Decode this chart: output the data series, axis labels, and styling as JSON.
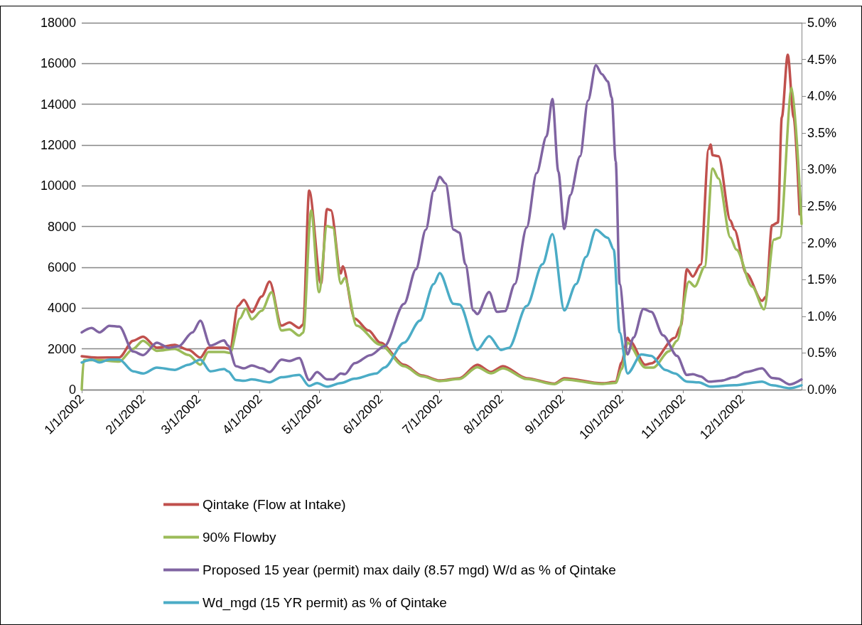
{
  "chart_data": {
    "type": "line",
    "grid": "y",
    "legend": "bottom",
    "marker": "none",
    "xlim": [
      "2002-01-01",
      "2002-12-31"
    ],
    "xticks": [
      {
        "value": "2002-01-01",
        "label": "1/1/2002"
      },
      {
        "value": "2002-02-01",
        "label": "2/1/2002"
      },
      {
        "value": "2002-03-01",
        "label": "3/1/2002"
      },
      {
        "value": "2002-04-01",
        "label": "4/1/2002"
      },
      {
        "value": "2002-05-01",
        "label": "5/1/2002"
      },
      {
        "value": "2002-06-01",
        "label": "6/1/2002"
      },
      {
        "value": "2002-07-01",
        "label": "7/1/2002"
      },
      {
        "value": "2002-08-01",
        "label": "8/1/2002"
      },
      {
        "value": "2002-09-01",
        "label": "9/1/2002"
      },
      {
        "value": "2002-10-01",
        "label": "10/1/2002"
      },
      {
        "value": "2002-11-01",
        "label": "11/1/2002"
      },
      {
        "value": "2002-12-01",
        "label": "12/1/2002"
      }
    ],
    "ylim": [
      0,
      18000
    ],
    "yticks": [
      0,
      2000,
      4000,
      6000,
      8000,
      10000,
      12000,
      14000,
      16000,
      18000
    ],
    "y2lim": [
      0,
      5
    ],
    "y2ticks": [
      {
        "value": 0,
        "label": "0.0%"
      },
      {
        "value": 0.5,
        "label": "0.5%"
      },
      {
        "value": 1,
        "label": "1.0%"
      },
      {
        "value": 1.5,
        "label": "1.5%"
      },
      {
        "value": 2,
        "label": "2.0%"
      },
      {
        "value": 2.5,
        "label": "2.5%"
      },
      {
        "value": 3,
        "label": "3.0%"
      },
      {
        "value": 3.5,
        "label": "3.5%"
      },
      {
        "value": 4,
        "label": "4.0%"
      },
      {
        "value": 4.5,
        "label": "4.5%"
      },
      {
        "value": 5,
        "label": "5.0%"
      }
    ],
    "series": [
      {
        "name": "Qintake (Flow at Intake)",
        "color": "#c0504d",
        "x": [
          "2002-01-01",
          "2002-01-09",
          "2002-01-20",
          "2002-01-27",
          "2002-02-01",
          "2002-02-08",
          "2002-02-17",
          "2002-02-24",
          "2002-03-02",
          "2002-03-06",
          "2002-03-14",
          "2002-03-17",
          "2002-03-21",
          "2002-03-24",
          "2002-03-28",
          "2002-04-02",
          "2002-04-06",
          "2002-04-12",
          "2002-04-16",
          "2002-04-21",
          "2002-04-23",
          "2002-04-26",
          "2002-05-02",
          "2002-05-05",
          "2002-05-07",
          "2002-05-12",
          "2002-05-13",
          "2002-05-19",
          "2002-05-26",
          "2002-06-01",
          "2002-06-13",
          "2002-06-22",
          "2002-07-01",
          "2002-07-11",
          "2002-07-20",
          "2002-07-27",
          "2002-08-02",
          "2002-08-14",
          "2002-08-28",
          "2002-09-02",
          "2002-09-21",
          "2002-09-28",
          "2002-10-01",
          "2002-10-04",
          "2002-10-05",
          "2002-10-13",
          "2002-10-16",
          "2002-10-28",
          "2002-10-31",
          "2002-11-03",
          "2002-11-06",
          "2002-11-10",
          "2002-11-14",
          "2002-11-15",
          "2002-11-16",
          "2002-11-19",
          "2002-11-25",
          "2002-11-27",
          "2002-12-03",
          "2002-12-11",
          "2002-12-13",
          "2002-12-16",
          "2002-12-19",
          "2002-12-21",
          "2002-12-24",
          "2002-12-27",
          "2002-12-30"
        ],
        "values": [
          1640,
          1570,
          1580,
          2400,
          2600,
          2060,
          2200,
          1950,
          1570,
          2060,
          2060,
          2000,
          4110,
          4400,
          3800,
          4570,
          5300,
          3140,
          3300,
          3030,
          3200,
          9770,
          5200,
          8860,
          8800,
          5700,
          6050,
          3490,
          2900,
          2300,
          1220,
          700,
          450,
          560,
          1220,
          870,
          1150,
          560,
          300,
          560,
          310,
          380,
          1330,
          2550,
          2400,
          1220,
          1290,
          2550,
          3140,
          5900,
          5550,
          6140,
          11800,
          12030,
          11500,
          11450,
          8300,
          7850,
          5700,
          4360,
          4560,
          8060,
          8200,
          13360,
          16430,
          13360,
          8600
        ]
      },
      {
        "name": "90% Flowby",
        "color": "#9bbb59",
        "x": [
          "2002-01-01",
          "2002-01-02",
          "2002-01-09",
          "2002-01-20",
          "2002-01-27",
          "2002-02-01",
          "2002-02-08",
          "2002-02-17",
          "2002-02-24",
          "2002-03-02",
          "2002-03-06",
          "2002-03-14",
          "2002-03-17",
          "2002-03-22",
          "2002-03-25",
          "2002-03-28",
          "2002-04-02",
          "2002-04-07",
          "2002-04-12",
          "2002-04-16",
          "2002-04-21",
          "2002-04-23",
          "2002-04-27",
          "2002-05-01",
          "2002-05-05",
          "2002-05-08",
          "2002-05-12",
          "2002-05-14",
          "2002-05-20",
          "2002-06-01",
          "2002-06-13",
          "2002-06-22",
          "2002-07-01",
          "2002-07-11",
          "2002-07-20",
          "2002-07-27",
          "2002-08-02",
          "2002-08-14",
          "2002-08-28",
          "2002-09-02",
          "2002-09-21",
          "2002-09-28",
          "2002-10-01",
          "2002-10-04",
          "2002-10-13",
          "2002-10-17",
          "2002-10-25",
          "2002-10-29",
          "2002-11-04",
          "2002-11-07",
          "2002-11-12",
          "2002-11-16",
          "2002-11-19",
          "2002-11-25",
          "2002-11-28",
          "2002-12-06",
          "2002-12-12",
          "2002-12-17",
          "2002-12-20",
          "2002-12-26",
          "2002-12-31"
        ],
        "values": [
          0,
          1450,
          1450,
          1380,
          2000,
          2400,
          1900,
          2000,
          1700,
          1220,
          1850,
          1850,
          1800,
          3490,
          3980,
          3450,
          3870,
          4780,
          2900,
          2960,
          2650,
          2800,
          8790,
          4780,
          8020,
          7950,
          5200,
          5480,
          3140,
          2200,
          1150,
          650,
          420,
          520,
          1100,
          800,
          1050,
          520,
          270,
          500,
          280,
          330,
          1000,
          2300,
          1080,
          1080,
          1880,
          2400,
          5300,
          5060,
          6030,
          10850,
          10360,
          7460,
          6870,
          5060,
          3940,
          7360,
          7460,
          14820,
          8130
        ]
      },
      {
        "name": "Proposed 15 year (permit) max daily (8.57 mgd) W/d as % of Qintake",
        "color": "#8064a2",
        "axis": "y2",
        "x": [
          "2002-01-01",
          "2002-01-06",
          "2002-01-10",
          "2002-01-15",
          "2002-01-20",
          "2002-01-27",
          "2002-02-01",
          "2002-02-08",
          "2002-02-14",
          "2002-02-19",
          "2002-02-26",
          "2002-03-02",
          "2002-03-07",
          "2002-03-14",
          "2002-03-16",
          "2002-03-20",
          "2002-03-24",
          "2002-03-28",
          "2002-04-02",
          "2002-04-06",
          "2002-04-12",
          "2002-04-16",
          "2002-04-21",
          "2002-04-26",
          "2002-04-30",
          "2002-05-05",
          "2002-05-08",
          "2002-05-12",
          "2002-05-14",
          "2002-05-19",
          "2002-05-27",
          "2002-06-03",
          "2002-06-13",
          "2002-06-19",
          "2002-06-24",
          "2002-06-28",
          "2002-07-01",
          "2002-07-04",
          "2002-07-08",
          "2002-07-11",
          "2002-07-14",
          "2002-07-18",
          "2002-07-20",
          "2002-07-26",
          "2002-07-30",
          "2002-08-03",
          "2002-08-08",
          "2002-08-14",
          "2002-08-19",
          "2002-08-24",
          "2002-08-27",
          "2002-08-30",
          "2002-09-02",
          "2002-09-05",
          "2002-09-10",
          "2002-09-14",
          "2002-09-18",
          "2002-09-21",
          "2002-09-24",
          "2002-09-26",
          "2002-09-28",
          "2002-09-30",
          "2002-10-04",
          "2002-10-07",
          "2002-10-12",
          "2002-10-16",
          "2002-10-22",
          "2002-10-29",
          "2002-11-03",
          "2002-11-06",
          "2002-11-10",
          "2002-11-14",
          "2002-11-20",
          "2002-11-27",
          "2002-12-03",
          "2002-12-11",
          "2002-12-16",
          "2002-12-19",
          "2002-12-25",
          "2002-12-31"
        ],
        "values": [
          0.78,
          0.84,
          0.78,
          0.87,
          0.86,
          0.52,
          0.47,
          0.64,
          0.57,
          0.59,
          0.78,
          0.94,
          0.6,
          0.67,
          0.6,
          0.32,
          0.29,
          0.33,
          0.29,
          0.24,
          0.41,
          0.39,
          0.43,
          0.13,
          0.24,
          0.14,
          0.14,
          0.22,
          0.21,
          0.36,
          0.47,
          0.59,
          1.17,
          1.64,
          2.18,
          2.71,
          2.9,
          2.81,
          2.18,
          2.14,
          1.71,
          1.08,
          1.03,
          1.33,
          1.06,
          1.07,
          1.44,
          2.21,
          2.95,
          3.45,
          3.96,
          2.97,
          2.19,
          2.65,
          3.18,
          3.94,
          4.42,
          4.3,
          4.2,
          3.98,
          3.11,
          1.44,
          0.48,
          0.71,
          1.1,
          1.06,
          0.74,
          0.46,
          0.2,
          0.21,
          0.18,
          0.11,
          0.12,
          0.17,
          0.24,
          0.29,
          0.16,
          0.15,
          0.07,
          0.14
        ]
      },
      {
        "name": "Wd_mgd (15 YR permit) as % of Qintake",
        "color": "#4bacc6",
        "axis": "y2",
        "x": [
          "2002-01-01",
          "2002-01-06",
          "2002-01-10",
          "2002-01-15",
          "2002-01-20",
          "2002-01-27",
          "2002-02-01",
          "2002-02-08",
          "2002-02-17",
          "2002-02-24",
          "2002-03-02",
          "2002-03-07",
          "2002-03-14",
          "2002-03-16",
          "2002-03-20",
          "2002-03-24",
          "2002-03-28",
          "2002-04-06",
          "2002-04-12",
          "2002-04-21",
          "2002-04-26",
          "2002-04-30",
          "2002-05-05",
          "2002-05-12",
          "2002-05-19",
          "2002-05-30",
          "2002-06-03",
          "2002-06-13",
          "2002-06-21",
          "2002-06-28",
          "2002-07-01",
          "2002-07-08",
          "2002-07-11",
          "2002-07-20",
          "2002-07-26",
          "2002-08-01",
          "2002-08-05",
          "2002-08-14",
          "2002-08-22",
          "2002-08-27",
          "2002-09-02",
          "2002-09-08",
          "2002-09-13",
          "2002-09-18",
          "2002-09-24",
          "2002-09-27",
          "2002-09-30",
          "2002-10-04",
          "2002-10-11",
          "2002-10-16",
          "2002-10-23",
          "2002-10-28",
          "2002-11-03",
          "2002-11-09",
          "2002-11-15",
          "2002-11-27",
          "2002-12-11",
          "2002-12-16",
          "2002-12-25",
          "2002-12-31"
        ],
        "values": [
          0.37,
          0.41,
          0.37,
          0.41,
          0.41,
          0.25,
          0.22,
          0.3,
          0.27,
          0.34,
          0.41,
          0.25,
          0.28,
          0.25,
          0.13,
          0.12,
          0.14,
          0.1,
          0.17,
          0.2,
          0.05,
          0.09,
          0.04,
          0.09,
          0.15,
          0.22,
          0.3,
          0.64,
          0.94,
          1.44,
          1.59,
          1.17,
          1.16,
          0.54,
          0.73,
          0.54,
          0.57,
          1.14,
          1.71,
          2.12,
          1.08,
          1.44,
          1.81,
          2.18,
          2.07,
          1.91,
          0.78,
          0.22,
          0.48,
          0.46,
          0.27,
          0.22,
          0.11,
          0.1,
          0.04,
          0.06,
          0.11,
          0.06,
          0.02,
          0.06
        ]
      }
    ]
  }
}
